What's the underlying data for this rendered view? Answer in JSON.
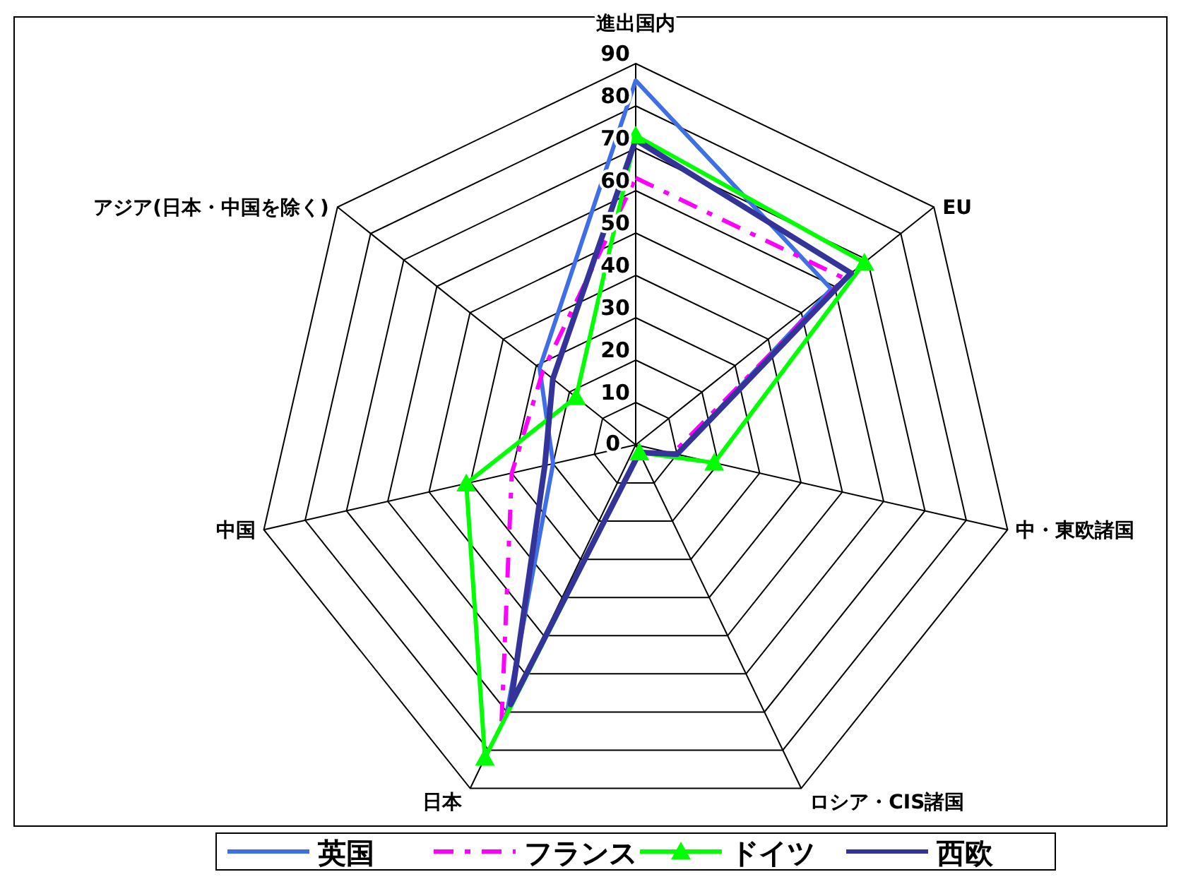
{
  "chart_data": {
    "type": "radar",
    "categories": [
      "進出国内",
      "EU",
      "中・東欧諸国",
      "ロシア・CIS諸国",
      "日本",
      "中国",
      "アジア(日本・中国を除く)"
    ],
    "ylim": [
      0,
      90
    ],
    "yticks": [
      0,
      10,
      20,
      30,
      40,
      50,
      60,
      70,
      80,
      90
    ],
    "grid": true,
    "legend": "bottom",
    "marker": "none",
    "series": [
      {
        "name": "英国",
        "color": "#3f6fe6",
        "line_style": "solid",
        "values": [
          86,
          59,
          10,
          2,
          70,
          20,
          29
        ]
      },
      {
        "name": "フランス",
        "color": "#ff00ff",
        "line_style": "dashed",
        "values": [
          63,
          63,
          9,
          2,
          73,
          30,
          28
        ]
      },
      {
        "name": "ドイツ",
        "color": "#00ff00",
        "line_style": "solid",
        "marker": "triangle",
        "values": [
          73,
          69,
          19,
          2,
          82,
          41,
          18
        ]
      },
      {
        "name": "西欧",
        "color": "#333399",
        "line_style": "solid",
        "values": [
          72,
          65,
          10,
          2,
          68,
          22,
          25
        ]
      }
    ]
  }
}
